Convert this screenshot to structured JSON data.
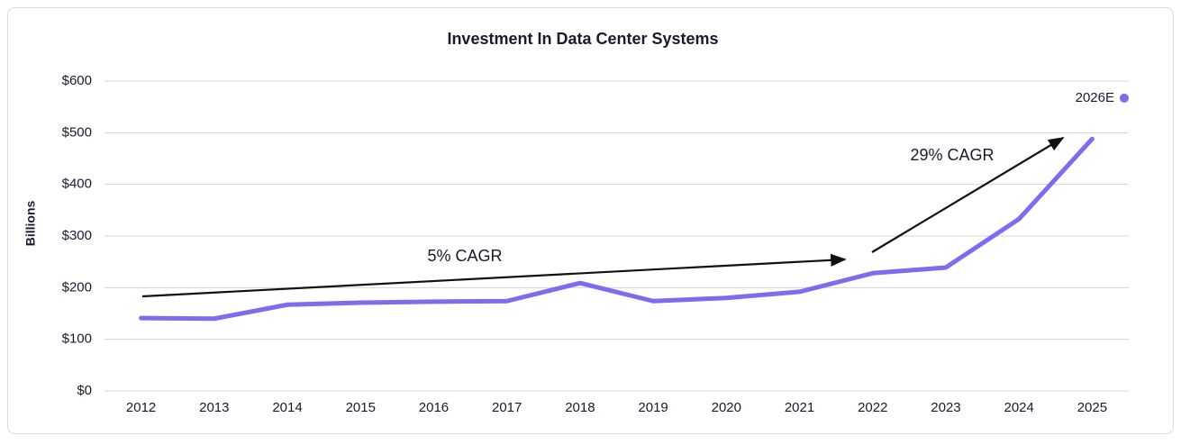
{
  "chart_data": {
    "type": "line",
    "title": "Investment In Data Center Systems",
    "y_label": "Billions",
    "categories": [
      "2012",
      "2013",
      "2014",
      "2015",
      "2016",
      "2017",
      "2018",
      "2019",
      "2020",
      "2021",
      "2022",
      "2023",
      "2024",
      "2025"
    ],
    "series": [
      {
        "color": "#7c6cf0",
        "values": [
          141,
          140,
          167,
          171,
          173,
          174,
          209,
          174,
          180,
          192,
          228,
          239,
          333,
          488
        ]
      }
    ],
    "estimate": {
      "label": "2026E",
      "value": 567,
      "color": "#7c6cf0"
    },
    "ylim": [
      0,
      600
    ],
    "yticks": [
      {
        "value": 0,
        "label": "$0"
      },
      {
        "value": 100,
        "label": "$100"
      },
      {
        "value": 200,
        "label": "$200"
      },
      {
        "value": 300,
        "label": "$300"
      },
      {
        "value": 400,
        "label": "$400"
      },
      {
        "value": 500,
        "label": "$500"
      },
      {
        "value": 600,
        "label": "$600"
      }
    ],
    "grid": true,
    "annotations": [
      "5% CAGR",
      "29% CAGR"
    ]
  }
}
